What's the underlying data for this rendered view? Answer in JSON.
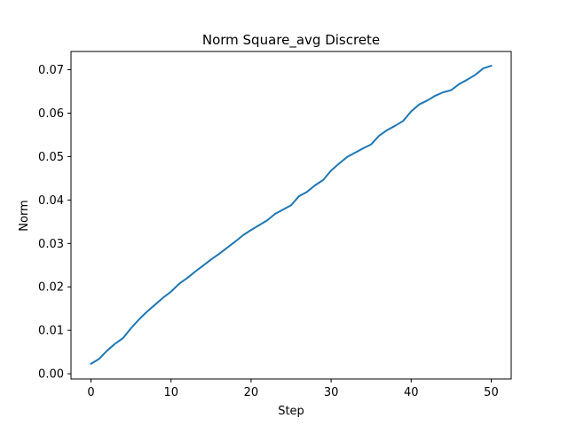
{
  "chart_data": {
    "type": "line",
    "title": "Norm Square_avg Discrete",
    "xlabel": "Step",
    "ylabel": "Norm",
    "xlim": [
      -2.5,
      52.5
    ],
    "ylim": [
      -0.0012,
      0.0742
    ],
    "grid": false,
    "xticks": [
      0,
      10,
      20,
      30,
      40,
      50
    ],
    "xtick_labels": [
      "0",
      "10",
      "20",
      "30",
      "40",
      "50"
    ],
    "yticks": [
      0.0,
      0.01,
      0.02,
      0.03,
      0.04,
      0.05,
      0.06,
      0.07
    ],
    "ytick_labels": [
      "0.00",
      "0.01",
      "0.02",
      "0.03",
      "0.04",
      "0.05",
      "0.06",
      "0.07"
    ],
    "series": [
      {
        "color": "#1f77b4",
        "x": [
          0,
          1,
          2,
          3,
          4,
          5,
          6,
          7,
          8,
          9,
          10,
          11,
          12,
          13,
          14,
          15,
          16,
          17,
          18,
          19,
          20,
          21,
          22,
          23,
          24,
          25,
          26,
          27,
          28,
          29,
          30,
          31,
          32,
          33,
          34,
          35,
          36,
          37,
          38,
          39,
          40,
          41,
          42,
          43,
          44,
          45,
          46,
          47,
          48,
          49,
          50
        ],
        "values": [
          0.0023,
          0.0034,
          0.0053,
          0.0069,
          0.0082,
          0.0105,
          0.0125,
          0.0143,
          0.0159,
          0.0175,
          0.0189,
          0.0207,
          0.022,
          0.0235,
          0.0249,
          0.0263,
          0.0276,
          0.029,
          0.0304,
          0.0319,
          0.0331,
          0.0342,
          0.0353,
          0.0368,
          0.0378,
          0.0388,
          0.0409,
          0.0419,
          0.0434,
          0.0446,
          0.0468,
          0.0484,
          0.0499,
          0.0509,
          0.0519,
          0.0528,
          0.0548,
          0.0561,
          0.0571,
          0.0582,
          0.0604,
          0.062,
          0.0629,
          0.064,
          0.0648,
          0.0653,
          0.0667,
          0.0677,
          0.0688,
          0.0703,
          0.0709
        ]
      }
    ]
  }
}
